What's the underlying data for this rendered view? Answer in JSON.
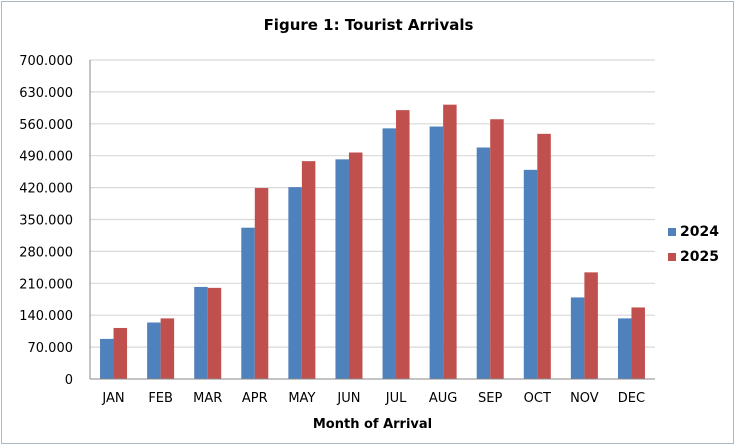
{
  "chart_data": {
    "type": "bar",
    "title": "Figure 1: Tourist Arrivals",
    "xlabel": "Month of Arrival",
    "ylabel": "",
    "ylim": [
      0,
      700000
    ],
    "yticks": [
      0,
      70000,
      140000,
      210000,
      280000,
      350000,
      420000,
      490000,
      560000,
      630000,
      700000
    ],
    "ytick_labels": [
      "0",
      "70.000",
      "140.000",
      "210.000",
      "280.000",
      "350.000",
      "420.000",
      "490.000",
      "560.000",
      "630.000",
      "700.000"
    ],
    "categories": [
      "JAN",
      "FEB",
      "MAR",
      "APR",
      "MAY",
      "JUN",
      "JUL",
      "AUG",
      "SEP",
      "OCT",
      "NOV",
      "DEC"
    ],
    "series": [
      {
        "name": "2024",
        "color": "#4f81bd",
        "values": [
          88000,
          124000,
          202000,
          332000,
          421000,
          482000,
          550000,
          554000,
          508000,
          459000,
          179000,
          133000
        ]
      },
      {
        "name": "2025",
        "color": "#c0504d",
        "values": [
          112000,
          133000,
          200000,
          419000,
          478000,
          497000,
          590000,
          602000,
          570000,
          538000,
          234000,
          157000
        ]
      }
    ],
    "grid": true,
    "legend_position": "right"
  }
}
